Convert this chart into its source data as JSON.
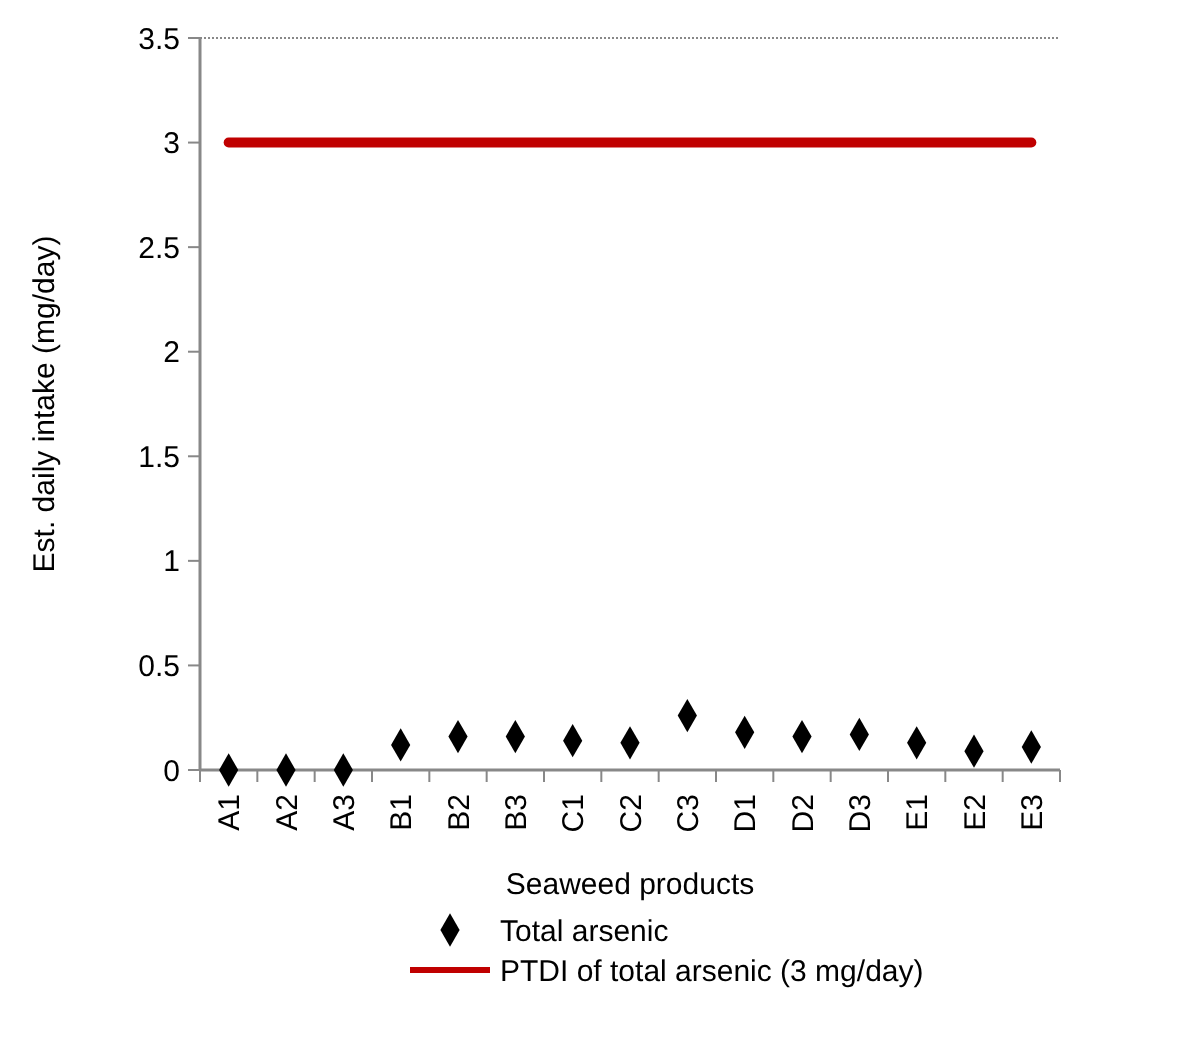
{
  "chart_data": {
    "type": "scatter",
    "xlabel": "Seaweed products",
    "ylabel": "Est. daily intake (mg/day)",
    "categories": [
      "A1",
      "A2",
      "A3",
      "B1",
      "B2",
      "B3",
      "C1",
      "C2",
      "C3",
      "D1",
      "D2",
      "D3",
      "E1",
      "E2",
      "E3"
    ],
    "ylim": [
      0,
      3.5
    ],
    "yticks": [
      0,
      0.5,
      1,
      1.5,
      2,
      2.5,
      3,
      3.5
    ],
    "grid": false,
    "legend": "bottom",
    "series": [
      {
        "name": "Total arsenic",
        "marker": "diamond",
        "color": "#000000",
        "values": [
          0,
          0,
          0,
          0.12,
          0.16,
          0.16,
          0.14,
          0.13,
          0.26,
          0.18,
          0.16,
          0.17,
          0.13,
          0.09,
          0.11
        ]
      },
      {
        "name": "PTDI of total arsenic (3 mg/day)",
        "type": "line",
        "line_style": "solid",
        "color": "#c00000",
        "values": [
          3,
          3,
          3,
          3,
          3,
          3,
          3,
          3,
          3,
          3,
          3,
          3,
          3,
          3,
          3
        ]
      }
    ]
  }
}
